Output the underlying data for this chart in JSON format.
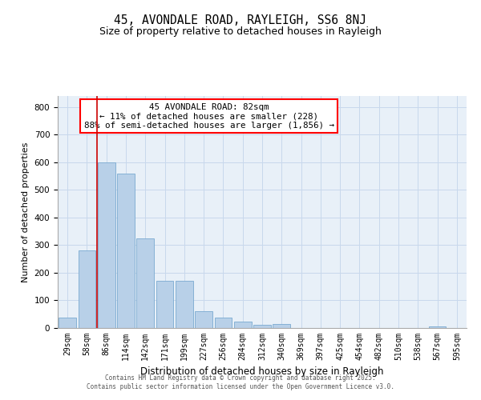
{
  "title1": "45, AVONDALE ROAD, RAYLEIGH, SS6 8NJ",
  "title2": "Size of property relative to detached houses in Rayleigh",
  "xlabel": "Distribution of detached houses by size in Rayleigh",
  "ylabel": "Number of detached properties",
  "annotation_line1": "45 AVONDALE ROAD: 82sqm",
  "annotation_line2": "← 11% of detached houses are smaller (228)",
  "annotation_line3": "88% of semi-detached houses are larger (1,856) →",
  "bar_labels": [
    "29sqm",
    "58sqm",
    "86sqm",
    "114sqm",
    "142sqm",
    "171sqm",
    "199sqm",
    "227sqm",
    "256sqm",
    "284sqm",
    "312sqm",
    "340sqm",
    "369sqm",
    "397sqm",
    "425sqm",
    "454sqm",
    "482sqm",
    "510sqm",
    "538sqm",
    "567sqm",
    "595sqm"
  ],
  "bar_values": [
    38,
    280,
    600,
    560,
    325,
    170,
    170,
    62,
    38,
    22,
    12,
    15,
    0,
    0,
    0,
    0,
    0,
    0,
    0,
    5,
    0
  ],
  "bar_color": "#b8d0e8",
  "bar_edge_color": "#7aaad0",
  "vline_color": "#cc0000",
  "vline_x": 1.5,
  "ylim": [
    0,
    840
  ],
  "yticks": [
    0,
    100,
    200,
    300,
    400,
    500,
    600,
    700,
    800
  ],
  "grid_color": "#c8d8ec",
  "background_color": "#e8f0f8",
  "footer_line1": "Contains HM Land Registry data © Crown copyright and database right 2025.",
  "footer_line2": "Contains public sector information licensed under the Open Government Licence v3.0."
}
